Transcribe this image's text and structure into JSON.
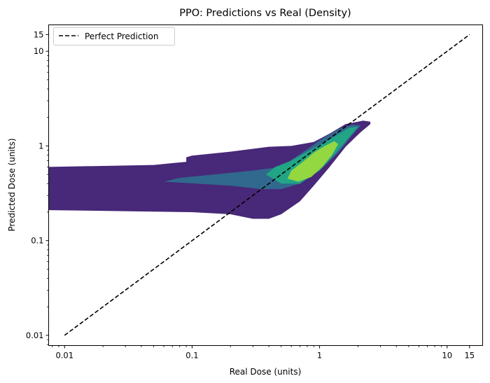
{
  "chart_data": {
    "type": "contour",
    "title": "PPO: Predictions vs Real (Density)",
    "xlabel": "Real Dose (units)",
    "ylabel": "Predicted Dose (units)",
    "xscale": "log",
    "yscale": "log",
    "xlim": [
      0.0075,
      19
    ],
    "ylim": [
      0.0078,
      19
    ],
    "xticks": [
      0.01,
      0.1,
      1,
      10,
      15
    ],
    "xtick_labels": [
      "0.01",
      "0.1",
      "1",
      "10",
      "15"
    ],
    "yticks": [
      0.01,
      0.1,
      1,
      10,
      15
    ],
    "ytick_labels": [
      "0.01",
      "0.1",
      "1",
      "10",
      "15"
    ],
    "legend": {
      "position": "top-left",
      "entries": [
        "Perfect Prediction"
      ]
    },
    "perfect_line": {
      "x": [
        0.01,
        15
      ],
      "y": [
        0.01,
        15
      ],
      "style": "dashed",
      "color": "#000000"
    },
    "density_levels": [
      {
        "level": 1,
        "color": "#482878",
        "polygon": [
          [
            0.0075,
            0.21
          ],
          [
            0.1,
            0.2
          ],
          [
            0.2,
            0.19
          ],
          [
            0.3,
            0.17
          ],
          [
            0.4,
            0.17
          ],
          [
            0.5,
            0.19
          ],
          [
            0.7,
            0.26
          ],
          [
            0.9,
            0.38
          ],
          [
            1.2,
            0.6
          ],
          [
            1.6,
            0.98
          ],
          [
            2.1,
            1.4
          ],
          [
            2.5,
            1.7
          ],
          [
            2.5,
            1.8
          ],
          [
            2.2,
            1.85
          ],
          [
            1.6,
            1.7
          ],
          [
            1.2,
            1.35
          ],
          [
            0.9,
            1.1
          ],
          [
            0.6,
            1.0
          ],
          [
            0.4,
            0.98
          ],
          [
            0.2,
            0.87
          ],
          [
            0.1,
            0.79
          ],
          [
            0.09,
            0.76
          ],
          [
            0.09,
            0.68
          ],
          [
            0.05,
            0.63
          ],
          [
            0.0075,
            0.6
          ]
        ]
      },
      {
        "level": 2,
        "color": "#31688e",
        "polygon": [
          [
            0.06,
            0.42
          ],
          [
            0.2,
            0.38
          ],
          [
            0.35,
            0.35
          ],
          [
            0.5,
            0.35
          ],
          [
            0.7,
            0.4
          ],
          [
            1.0,
            0.55
          ],
          [
            1.4,
            0.85
          ],
          [
            1.8,
            1.3
          ],
          [
            2.1,
            1.65
          ],
          [
            1.8,
            1.68
          ],
          [
            1.4,
            1.5
          ],
          [
            1.0,
            1.15
          ],
          [
            0.8,
            0.92
          ],
          [
            0.5,
            0.6
          ],
          [
            0.3,
            0.55
          ],
          [
            0.15,
            0.5
          ],
          [
            0.08,
            0.46
          ]
        ]
      },
      {
        "level": 3,
        "color": "#21a585",
        "polygon": [
          [
            0.38,
            0.5
          ],
          [
            0.5,
            0.4
          ],
          [
            0.7,
            0.4
          ],
          [
            1.0,
            0.55
          ],
          [
            1.4,
            0.9
          ],
          [
            1.8,
            1.35
          ],
          [
            2.0,
            1.6
          ],
          [
            1.7,
            1.55
          ],
          [
            1.3,
            1.25
          ],
          [
            0.9,
            0.95
          ],
          [
            0.6,
            0.7
          ],
          [
            0.45,
            0.6
          ]
        ]
      },
      {
        "level": 4,
        "color": "#93d741",
        "polygon": [
          [
            0.56,
            0.45
          ],
          [
            0.68,
            0.42
          ],
          [
            0.86,
            0.47
          ],
          [
            1.05,
            0.6
          ],
          [
            1.25,
            0.8
          ],
          [
            1.4,
            1.05
          ],
          [
            1.3,
            1.12
          ],
          [
            1.1,
            1.0
          ],
          [
            0.9,
            0.85
          ],
          [
            0.72,
            0.66
          ],
          [
            0.6,
            0.55
          ]
        ]
      }
    ]
  }
}
